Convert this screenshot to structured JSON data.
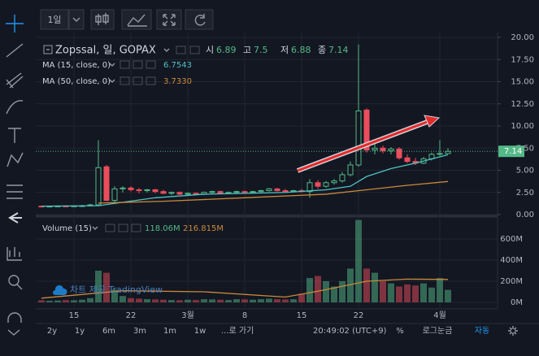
{
  "toolbar": {
    "interval": "1일"
  },
  "chart_data": {
    "type": "candlestick",
    "title": "Zopssal, 일, GOPAX",
    "ohlc_labels": [
      "시",
      "고",
      "저",
      "종"
    ],
    "categories": [
      null,
      null,
      null,
      null,
      "15",
      null,
      null,
      null,
      null,
      null,
      null,
      "22",
      null,
      null,
      null,
      null,
      null,
      null,
      "3월",
      null,
      null,
      null,
      null,
      null,
      null,
      "8",
      null,
      null,
      null,
      null,
      null,
      null,
      "15",
      null,
      null,
      null,
      null,
      null,
      null,
      "22",
      null,
      null,
      null,
      null,
      null,
      null,
      null,
      null,
      null,
      "4월",
      null
    ],
    "open": [
      0.95,
      0.92,
      0.95,
      0.97,
      0.95,
      0.98,
      1.0,
      1.1,
      5.4,
      1.6,
      2.9,
      3.0,
      2.8,
      2.7,
      2.8,
      2.6,
      2.4,
      2.5,
      2.3,
      2.4,
      2.3,
      2.5,
      2.6,
      2.4,
      2.5,
      2.6,
      2.5,
      2.6,
      2.7,
      2.9,
      2.7,
      2.6,
      2.7,
      2.6,
      3.6,
      3.2,
      3.6,
      3.8,
      4.5,
      5.6,
      11.8,
      7.3,
      7.5,
      7.2,
      7.4,
      6.4,
      6.0,
      5.8,
      6.3,
      6.8,
      6.89
    ],
    "high": [
      1.0,
      0.98,
      1.0,
      1.05,
      1.0,
      1.1,
      1.2,
      8.4,
      5.6,
      3.2,
      3.2,
      3.2,
      3.0,
      2.9,
      2.9,
      2.8,
      2.6,
      2.6,
      2.5,
      2.5,
      2.6,
      2.7,
      2.7,
      2.6,
      2.7,
      2.7,
      2.7,
      2.8,
      3.0,
      3.0,
      2.9,
      2.8,
      2.9,
      4.0,
      3.9,
      3.8,
      4.0,
      4.8,
      6.0,
      19.2,
      12.0,
      8.0,
      7.8,
      7.6,
      7.6,
      6.8,
      6.4,
      6.5,
      7.0,
      8.4,
      7.5
    ],
    "low": [
      0.9,
      0.9,
      0.92,
      0.93,
      0.9,
      0.95,
      0.95,
      1.0,
      1.5,
      1.4,
      2.5,
      2.6,
      2.4,
      2.5,
      2.4,
      2.3,
      2.2,
      2.2,
      2.1,
      2.2,
      2.2,
      2.3,
      2.3,
      2.3,
      2.4,
      2.4,
      2.4,
      2.5,
      2.6,
      2.6,
      2.5,
      2.5,
      2.5,
      1.9,
      2.9,
      3.0,
      3.4,
      3.6,
      4.3,
      5.4,
      7.0,
      6.8,
      6.9,
      6.8,
      6.2,
      5.8,
      5.6,
      5.7,
      6.1,
      6.6,
      6.88
    ],
    "close": [
      0.92,
      0.95,
      0.97,
      0.95,
      0.98,
      1.0,
      1.1,
      5.3,
      1.6,
      2.9,
      3.0,
      2.8,
      2.7,
      2.8,
      2.6,
      2.4,
      2.5,
      2.3,
      2.4,
      2.3,
      2.5,
      2.6,
      2.4,
      2.5,
      2.6,
      2.5,
      2.6,
      2.7,
      2.9,
      2.7,
      2.6,
      2.7,
      2.6,
      3.6,
      3.2,
      3.6,
      3.8,
      4.5,
      5.6,
      11.7,
      7.3,
      7.5,
      7.2,
      7.4,
      6.4,
      6.0,
      5.8,
      6.3,
      6.8,
      6.9,
      7.14
    ],
    "volume": [
      20,
      15,
      18,
      22,
      20,
      25,
      40,
      300,
      280,
      120,
      60,
      40,
      35,
      30,
      28,
      25,
      22,
      20,
      25,
      22,
      30,
      28,
      25,
      22,
      30,
      28,
      25,
      30,
      35,
      30,
      28,
      30,
      80,
      230,
      250,
      200,
      150,
      200,
      320,
      780,
      320,
      280,
      200,
      180,
      150,
      170,
      160,
      180,
      140,
      230,
      118.06
    ],
    "up_color": "#53b987",
    "down_color": "#eb4d5c",
    "ylim": [
      0,
      20
    ],
    "yticks": [
      {
        "value": 0,
        "label": "0.00"
      },
      {
        "value": 2.5,
        "label": "2.50"
      },
      {
        "value": 5,
        "label": "5.00"
      },
      {
        "value": 7.5,
        "label": "7.50"
      },
      {
        "value": 10,
        "label": "10.00"
      },
      {
        "value": 12.5,
        "label": "12.50"
      },
      {
        "value": 15,
        "label": "15.00"
      },
      {
        "value": 17.5,
        "label": "17.50"
      },
      {
        "value": 20,
        "label": "20.00"
      }
    ],
    "grid": true,
    "indicators": [
      {
        "name": "MA (15, close, 0)",
        "color": "#4ec3c3",
        "x": [
          0,
          7,
          14,
          20,
          25,
          30,
          35,
          38,
          40,
          43,
          46,
          50
        ],
        "values": [
          0.95,
          1.0,
          1.9,
          2.3,
          2.4,
          2.5,
          2.8,
          3.2,
          4.3,
          5.2,
          5.8,
          6.7543
        ]
      },
      {
        "name": "MA (50, close, 0)",
        "color": "#c98a3a",
        "x": [
          7,
          15,
          25,
          35,
          40,
          45,
          50
        ],
        "values": [
          1.3,
          1.5,
          1.9,
          2.3,
          2.8,
          3.3,
          3.733
        ]
      }
    ],
    "indicator_labels": [
      "6.7543",
      "3.7330"
    ],
    "volume_pane": {
      "name": "Volume (15)",
      "last": {
        "value": 118.06,
        "label": "118.06M"
      },
      "ma": {
        "color": "#c98a3a",
        "x": [
          0,
          10,
          20,
          30,
          35,
          40,
          45,
          50
        ],
        "values": [
          40,
          110,
          100,
          50,
          120,
          200,
          220,
          216.815
        ],
        "last": {
          "value": 216.815,
          "label": "216.815M"
        }
      },
      "y2lim": [
        0,
        800
      ],
      "y2ticks": [
        {
          "value": 0,
          "label": "0M"
        },
        {
          "value": 200,
          "label": "200M"
        },
        {
          "value": 400,
          "label": "400M"
        },
        {
          "value": 600,
          "label": "600M"
        }
      ]
    }
  },
  "watermark": "차트 제공 TradingView",
  "bottom_bar": {
    "ranges": [
      "2y",
      "1y",
      "6m",
      "3m",
      "1m",
      "1w"
    ],
    "goto": "...로 가기",
    "time": "20:49:02 (UTC+9)",
    "percent": "%",
    "log": "로그눈금",
    "auto": "자동"
  }
}
